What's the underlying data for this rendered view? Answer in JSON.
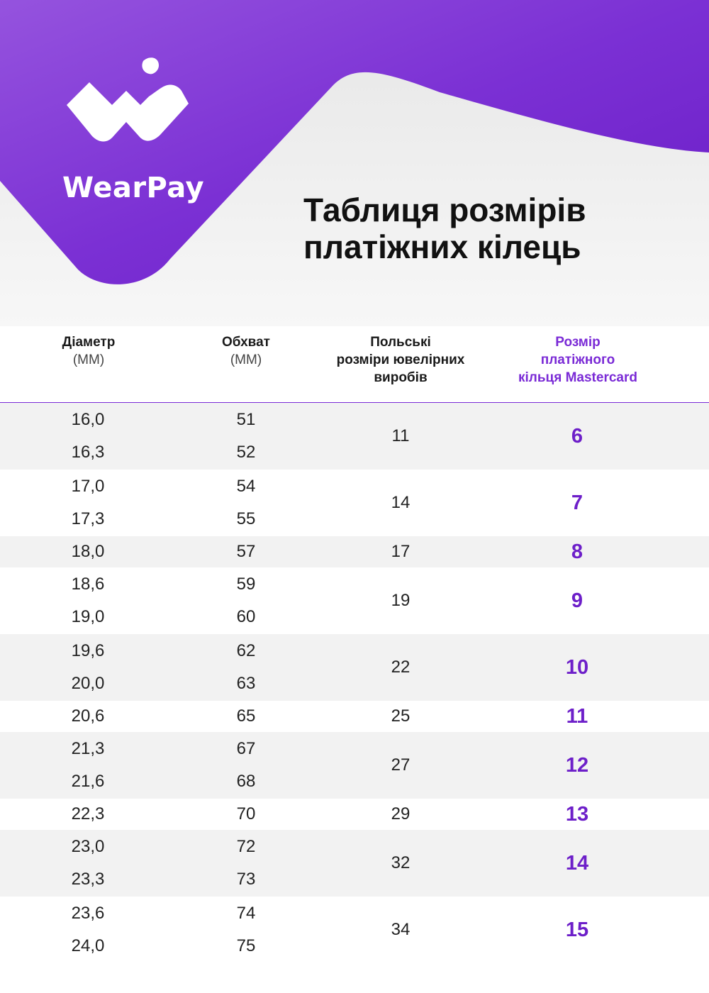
{
  "brand": {
    "name": "WearPay"
  },
  "title": {
    "line1": "Таблиця розмірів",
    "line2": "платіжних кілець"
  },
  "headers": {
    "diameter": {
      "label": "Діаметр",
      "unit": "(ММ)"
    },
    "circumference": {
      "label": "Обхват",
      "unit": "(ММ)"
    },
    "polish": {
      "line1": "Польські",
      "line2": "розміри ювелірних",
      "line3": "виробів"
    },
    "mastercard": {
      "line1": "Розмір",
      "line2": "платіжного",
      "line3": "кільця Mastercard"
    }
  },
  "colors": {
    "accent": "#6d1fc9",
    "purple_light": "#8e4ed8",
    "stripe": "#f2f2f2",
    "hero_bg": "#ececec"
  },
  "icons": {
    "logo": "wearpay-logo-icon"
  },
  "groups": [
    {
      "rows": [
        {
          "diameter": "16,0",
          "circumference": "51"
        },
        {
          "diameter": "16,3",
          "circumference": "52"
        }
      ],
      "polish": "11",
      "mastercard": "6"
    },
    {
      "rows": [
        {
          "diameter": "17,0",
          "circumference": "54"
        },
        {
          "diameter": "17,3",
          "circumference": "55"
        }
      ],
      "polish": "14",
      "mastercard": "7"
    },
    {
      "rows": [
        {
          "diameter": "18,0",
          "circumference": "57"
        }
      ],
      "polish": "17",
      "mastercard": "8"
    },
    {
      "rows": [
        {
          "diameter": "18,6",
          "circumference": "59"
        },
        {
          "diameter": "19,0",
          "circumference": "60"
        }
      ],
      "polish": "19",
      "mastercard": "9"
    },
    {
      "rows": [
        {
          "diameter": "19,6",
          "circumference": "62"
        },
        {
          "diameter": "20,0",
          "circumference": "63"
        }
      ],
      "polish": "22",
      "mastercard": "10"
    },
    {
      "rows": [
        {
          "diameter": "20,6",
          "circumference": "65"
        }
      ],
      "polish": "25",
      "mastercard": "11"
    },
    {
      "rows": [
        {
          "diameter": "21,3",
          "circumference": "67"
        },
        {
          "diameter": "21,6",
          "circumference": "68"
        }
      ],
      "polish": "27",
      "mastercard": "12"
    },
    {
      "rows": [
        {
          "diameter": "22,3",
          "circumference": "70"
        }
      ],
      "polish": "29",
      "mastercard": "13"
    },
    {
      "rows": [
        {
          "diameter": "23,0",
          "circumference": "72"
        },
        {
          "diameter": "23,3",
          "circumference": "73"
        }
      ],
      "polish": "32",
      "mastercard": "14"
    },
    {
      "rows": [
        {
          "diameter": "23,6",
          "circumference": "74"
        },
        {
          "diameter": "24,0",
          "circumference": "75"
        }
      ],
      "polish": "34",
      "mastercard": "15"
    }
  ]
}
